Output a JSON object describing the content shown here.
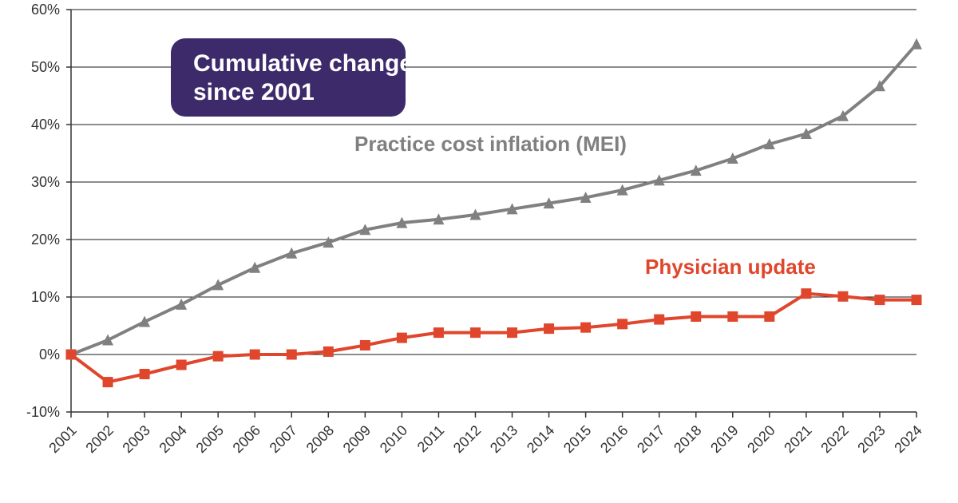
{
  "chart_data": {
    "type": "line",
    "title_lines": [
      "Cumulative change",
      "since 2001"
    ],
    "xlabel": "",
    "ylabel": "",
    "categories": [
      "2001",
      "2002",
      "2003",
      "2004",
      "2005",
      "2006",
      "2007",
      "2008",
      "2009",
      "2010",
      "2011",
      "2012",
      "2013",
      "2014",
      "2015",
      "2016",
      "2017",
      "2018",
      "2019",
      "2020",
      "2021",
      "2022",
      "2023",
      "2024"
    ],
    "ylim": [
      -10,
      60
    ],
    "yticks": [
      -10,
      0,
      10,
      20,
      30,
      40,
      50,
      60
    ],
    "ytick_labels": [
      "-10%",
      "0%",
      "10%",
      "20%",
      "30%",
      "40%",
      "50%",
      "60%"
    ],
    "grid": true,
    "series": [
      {
        "name": "Practice cost inflation (MEI)",
        "color": "#808080",
        "marker": "triangle",
        "values": [
          0,
          2.5,
          5.7,
          8.7,
          12.1,
          15.1,
          17.6,
          19.5,
          21.7,
          22.9,
          23.5,
          24.3,
          25.3,
          26.3,
          27.3,
          28.6,
          30.3,
          32.0,
          34.1,
          36.6,
          38.4,
          41.5,
          46.7,
          54.0
        ]
      },
      {
        "name": "Physician update",
        "color": "#e0462c",
        "marker": "square",
        "values": [
          0,
          -4.8,
          -3.4,
          -1.8,
          -0.3,
          0,
          0,
          0.5,
          1.6,
          2.9,
          3.8,
          3.8,
          3.8,
          4.5,
          4.7,
          5.3,
          6.1,
          6.6,
          6.6,
          6.6,
          10.6,
          10.1,
          9.5,
          9.5
        ]
      }
    ]
  },
  "colors": {
    "callout_bg": "#3d2a6b",
    "grid": "#1a1a1a",
    "axis": "#333333"
  }
}
